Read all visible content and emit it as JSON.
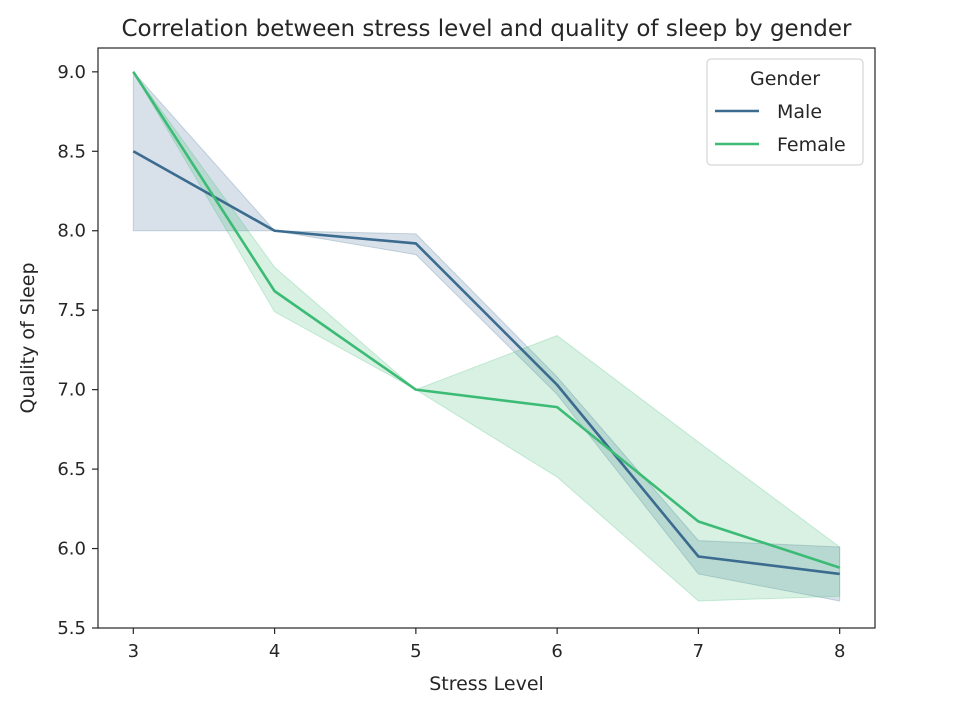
{
  "chart_data": {
    "type": "line",
    "title": "Correlation between stress level and quality of sleep by gender",
    "xlabel": "Stress Level",
    "ylabel": "Quality of Sleep",
    "x": [
      3,
      4,
      5,
      6,
      7,
      8
    ],
    "xlim": [
      2.75,
      8.25
    ],
    "ylim": [
      5.5,
      9.15
    ],
    "xticks": [
      "3",
      "4",
      "5",
      "6",
      "7",
      "8"
    ],
    "yticks": [
      "5.5",
      "6.0",
      "6.5",
      "7.0",
      "7.5",
      "8.0",
      "8.5",
      "9.0"
    ],
    "grid": false,
    "legend": {
      "title": "Gender",
      "placement": "top-right"
    },
    "series": [
      {
        "name": "Male",
        "color": "#3b6b8f",
        "values": [
          8.5,
          8.0,
          7.92,
          7.03,
          5.95,
          5.84
        ],
        "ci_low": [
          8.0,
          8.0,
          7.85,
          6.97,
          5.84,
          5.67
        ],
        "ci_high": [
          9.0,
          8.0,
          7.98,
          7.08,
          6.05,
          6.01
        ]
      },
      {
        "name": "Female",
        "color": "#3cbb75",
        "values": [
          9.0,
          7.62,
          7.0,
          6.89,
          6.17,
          5.88
        ],
        "ci_low": [
          9.0,
          7.49,
          7.0,
          6.45,
          5.67,
          5.7
        ],
        "ci_high": [
          9.0,
          7.77,
          7.0,
          7.34,
          6.67,
          6.01
        ]
      }
    ]
  }
}
